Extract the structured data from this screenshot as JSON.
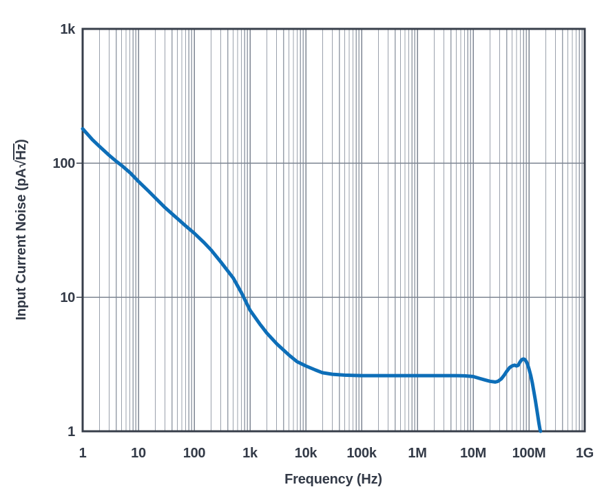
{
  "chart_data": {
    "type": "line",
    "title": "",
    "xlabel": "Frequency (Hz)",
    "ylabel": "Input Current Noise (pA√Hz)",
    "ylabel_parts": {
      "prefix": "Input Current Noise (pA",
      "radical": "√",
      "radicand": "Hz",
      "suffix": ")"
    },
    "x_scale": "log",
    "y_scale": "log",
    "xlim": [
      1,
      1000000000
    ],
    "ylim": [
      1,
      1000
    ],
    "grid": {
      "vertical_minor": true,
      "horizontal_minor": false,
      "horizontal_major": true
    },
    "legend_position": "none",
    "x_ticks": [
      {
        "value": 1,
        "label": "1"
      },
      {
        "value": 10,
        "label": "10"
      },
      {
        "value": 100,
        "label": "100"
      },
      {
        "value": 1000,
        "label": "1k"
      },
      {
        "value": 10000,
        "label": "10k"
      },
      {
        "value": 100000,
        "label": "100k"
      },
      {
        "value": 1000000,
        "label": "1M"
      },
      {
        "value": 10000000,
        "label": "10M"
      },
      {
        "value": 100000000,
        "label": "100M"
      },
      {
        "value": 1000000000,
        "label": "1G"
      }
    ],
    "y_ticks": [
      {
        "value": 1,
        "label": "1"
      },
      {
        "value": 10,
        "label": "10"
      },
      {
        "value": 100,
        "label": "100"
      },
      {
        "value": 1000,
        "label": "1k"
      }
    ],
    "series": [
      {
        "name": "input-current-noise",
        "color": "#0d6eb8",
        "points": [
          [
            1,
            180
          ],
          [
            1.5,
            149
          ],
          [
            2,
            133
          ],
          [
            3,
            114
          ],
          [
            4,
            103
          ],
          [
            5,
            96
          ],
          [
            7,
            85
          ],
          [
            10,
            73
          ],
          [
            15,
            62
          ],
          [
            20,
            55
          ],
          [
            30,
            46.5
          ],
          [
            50,
            38.5
          ],
          [
            70,
            34
          ],
          [
            100,
            30
          ],
          [
            150,
            25.5
          ],
          [
            200,
            22.5
          ],
          [
            300,
            18.3
          ],
          [
            500,
            13.9
          ],
          [
            700,
            10.8
          ],
          [
            1000,
            8.0
          ],
          [
            1500,
            6.3
          ],
          [
            2000,
            5.4
          ],
          [
            3000,
            4.5
          ],
          [
            5000,
            3.7
          ],
          [
            7000,
            3.3
          ],
          [
            10000,
            3.07
          ],
          [
            15000,
            2.86
          ],
          [
            20000,
            2.73
          ],
          [
            30000,
            2.66
          ],
          [
            50000,
            2.62
          ],
          [
            70000,
            2.61
          ],
          [
            100000,
            2.6
          ],
          [
            200000,
            2.6
          ],
          [
            300000,
            2.6
          ],
          [
            500000,
            2.6
          ],
          [
            700000,
            2.6
          ],
          [
            1000000,
            2.6
          ],
          [
            2000000,
            2.6
          ],
          [
            3000000,
            2.6
          ],
          [
            5000000,
            2.6
          ],
          [
            7000000,
            2.59
          ],
          [
            10000000,
            2.56
          ],
          [
            13000000,
            2.48
          ],
          [
            16000000,
            2.42
          ],
          [
            20000000,
            2.36
          ],
          [
            25000000,
            2.33
          ],
          [
            28000000,
            2.36
          ],
          [
            32000000,
            2.46
          ],
          [
            36000000,
            2.62
          ],
          [
            40000000,
            2.8
          ],
          [
            45000000,
            2.98
          ],
          [
            50000000,
            3.07
          ],
          [
            55000000,
            3.11
          ],
          [
            60000000,
            3.07
          ],
          [
            64000000,
            3.1
          ],
          [
            68000000,
            3.24
          ],
          [
            72000000,
            3.36
          ],
          [
            76000000,
            3.44
          ],
          [
            80000000,
            3.46
          ],
          [
            85000000,
            3.42
          ],
          [
            90000000,
            3.3
          ],
          [
            95000000,
            3.13
          ],
          [
            100000000,
            2.93
          ],
          [
            108000000,
            2.6
          ],
          [
            115000000,
            2.3
          ],
          [
            122000000,
            2.0
          ],
          [
            130000000,
            1.72
          ],
          [
            138000000,
            1.47
          ],
          [
            145000000,
            1.28
          ],
          [
            152000000,
            1.13
          ],
          [
            158000000,
            1.03
          ],
          [
            161000000,
            1.0
          ]
        ]
      }
    ],
    "colors": {
      "curve": "#0d6eb8",
      "grid_minor": "#99a0ab",
      "grid_major": "#7d8592",
      "frame": "#373e4a",
      "text": "#333a47",
      "background": "#ffffff"
    }
  }
}
